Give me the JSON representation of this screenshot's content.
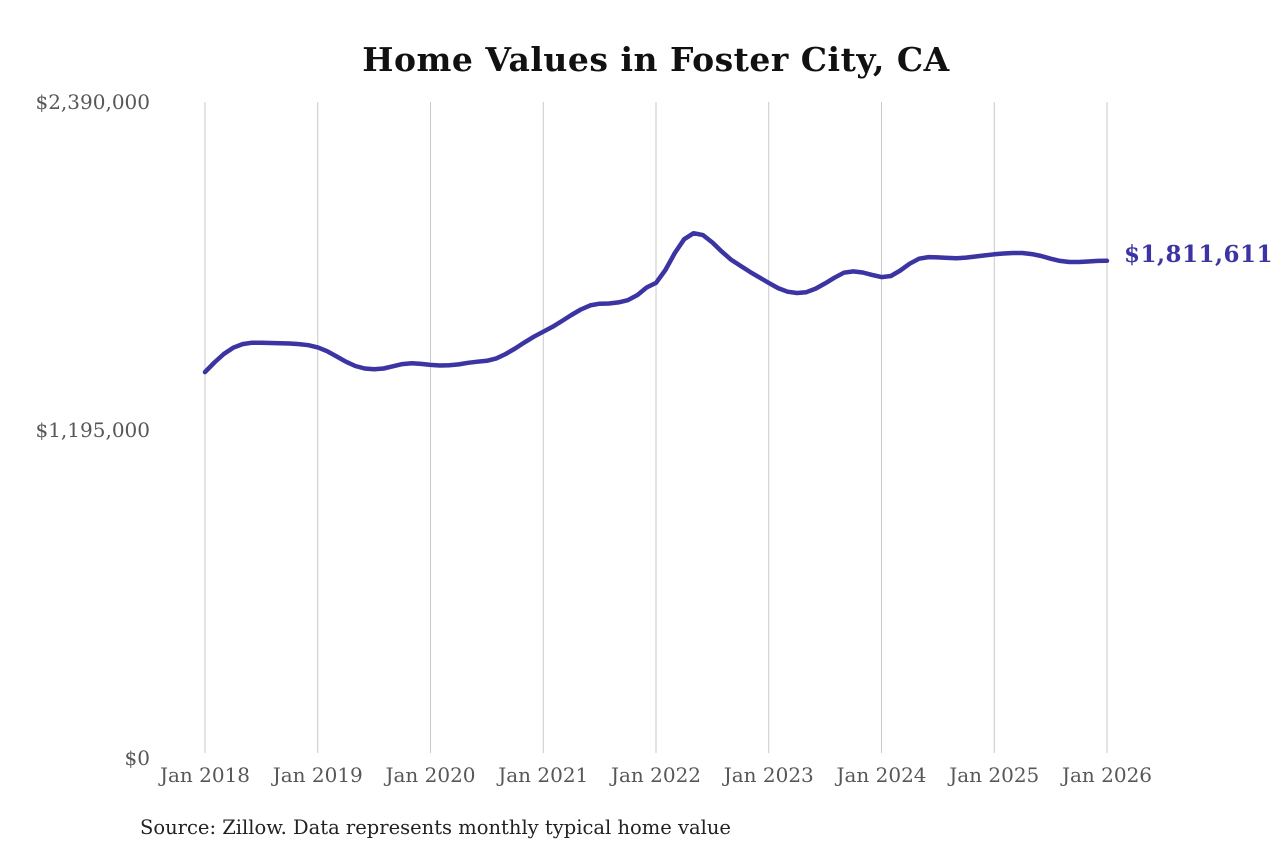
{
  "page": {
    "background": "#ffffff"
  },
  "chart_data": {
    "type": "line",
    "title": "Home Values in Foster City, CA",
    "source_note": "Source: Zillow. Data represents monthly typical home value",
    "series_name": "Monthly typical home value",
    "end_label": "$1,811,611",
    "latest_value": 1811611,
    "line_color": "#3b34a2",
    "grid_color": "#c9c9c9",
    "axis_label_color": "#575757",
    "ylim": [
      0,
      2390000
    ],
    "grid": "vertical-only",
    "legend": "none",
    "y_ticks": [
      {
        "label": "$0",
        "value": 0
      },
      {
        "label": "$1,195,000",
        "value": 1195000
      },
      {
        "label": "$2,390,000",
        "value": 2390000
      }
    ],
    "x_tick_labels": [
      "Jan 2018",
      "Jan 2019",
      "Jan 2020",
      "Jan 2021",
      "Jan 2022",
      "Jan 2023",
      "Jan 2024",
      "Jan 2025",
      "Jan 2026"
    ],
    "months": [
      "Jan 2018",
      "Feb 2018",
      "Mar 2018",
      "Apr 2018",
      "May 2018",
      "Jun 2018",
      "Jul 2018",
      "Aug 2018",
      "Sep 2018",
      "Oct 2018",
      "Nov 2018",
      "Dec 2018",
      "Jan 2019",
      "Feb 2019",
      "Mar 2019",
      "Apr 2019",
      "May 2019",
      "Jun 2019",
      "Jul 2019",
      "Aug 2019",
      "Sep 2019",
      "Oct 2019",
      "Nov 2019",
      "Dec 2019",
      "Jan 2020",
      "Feb 2020",
      "Mar 2020",
      "Apr 2020",
      "May 2020",
      "Jun 2020",
      "Jul 2020",
      "Aug 2020",
      "Sep 2020",
      "Oct 2020",
      "Nov 2020",
      "Dec 2020",
      "Jan 2021",
      "Feb 2021",
      "Mar 2021",
      "Apr 2021",
      "May 2021",
      "Jun 2021",
      "Jul 2021",
      "Aug 2021",
      "Sep 2021",
      "Oct 2021",
      "Nov 2021",
      "Dec 2021",
      "Jan 2022",
      "Feb 2022",
      "Mar 2022",
      "Apr 2022",
      "May 2022",
      "Jun 2022",
      "Jul 2022",
      "Aug 2022",
      "Sep 2022",
      "Oct 2022",
      "Nov 2022",
      "Dec 2022",
      "Jan 2023",
      "Feb 2023",
      "Mar 2023",
      "Apr 2023",
      "May 2023",
      "Jun 2023",
      "Jul 2023",
      "Aug 2023",
      "Sep 2023",
      "Oct 2023",
      "Nov 2023",
      "Dec 2023",
      "Jan 2024",
      "Feb 2024",
      "Mar 2024",
      "Apr 2024",
      "May 2024",
      "Jun 2024",
      "Jul 2024",
      "Aug 2024",
      "Sep 2024",
      "Oct 2024",
      "Nov 2024",
      "Dec 2024",
      "Jan 2025",
      "Feb 2025",
      "Mar 2025",
      "Apr 2025",
      "May 2025",
      "Jun 2025",
      "Jul 2025",
      "Aug 2025",
      "Sep 2025",
      "Oct 2025",
      "Nov 2025",
      "Dec 2025",
      "Jan 2026"
    ],
    "values": [
      1406000,
      1441000,
      1472000,
      1495000,
      1508000,
      1513000,
      1513000,
      1512000,
      1511000,
      1510000,
      1508000,
      1504000,
      1496000,
      1482000,
      1463000,
      1444000,
      1428000,
      1419000,
      1416000,
      1419000,
      1427000,
      1435000,
      1438000,
      1436000,
      1432000,
      1430000,
      1431000,
      1434000,
      1440000,
      1444000,
      1447000,
      1456000,
      1472000,
      1492000,
      1514000,
      1535000,
      1553000,
      1571000,
      1592000,
      1614000,
      1634000,
      1649000,
      1655000,
      1656000,
      1660000,
      1668000,
      1686000,
      1714000,
      1731000,
      1778000,
      1840000,
      1890000,
      1912000,
      1905000,
      1878000,
      1845000,
      1815000,
      1793000,
      1771000,
      1751000,
      1731000,
      1712000,
      1699000,
      1694000,
      1697000,
      1710000,
      1729000,
      1750000,
      1768000,
      1773000,
      1769000,
      1760000,
      1752000,
      1756000,
      1776000,
      1801000,
      1819000,
      1825000,
      1824000,
      1822000,
      1821000,
      1823000,
      1827000,
      1831000,
      1835000,
      1838000,
      1840000,
      1840000,
      1836000,
      1829000,
      1819000,
      1811000,
      1807000,
      1807000,
      1809000,
      1811000,
      1811611
    ]
  }
}
